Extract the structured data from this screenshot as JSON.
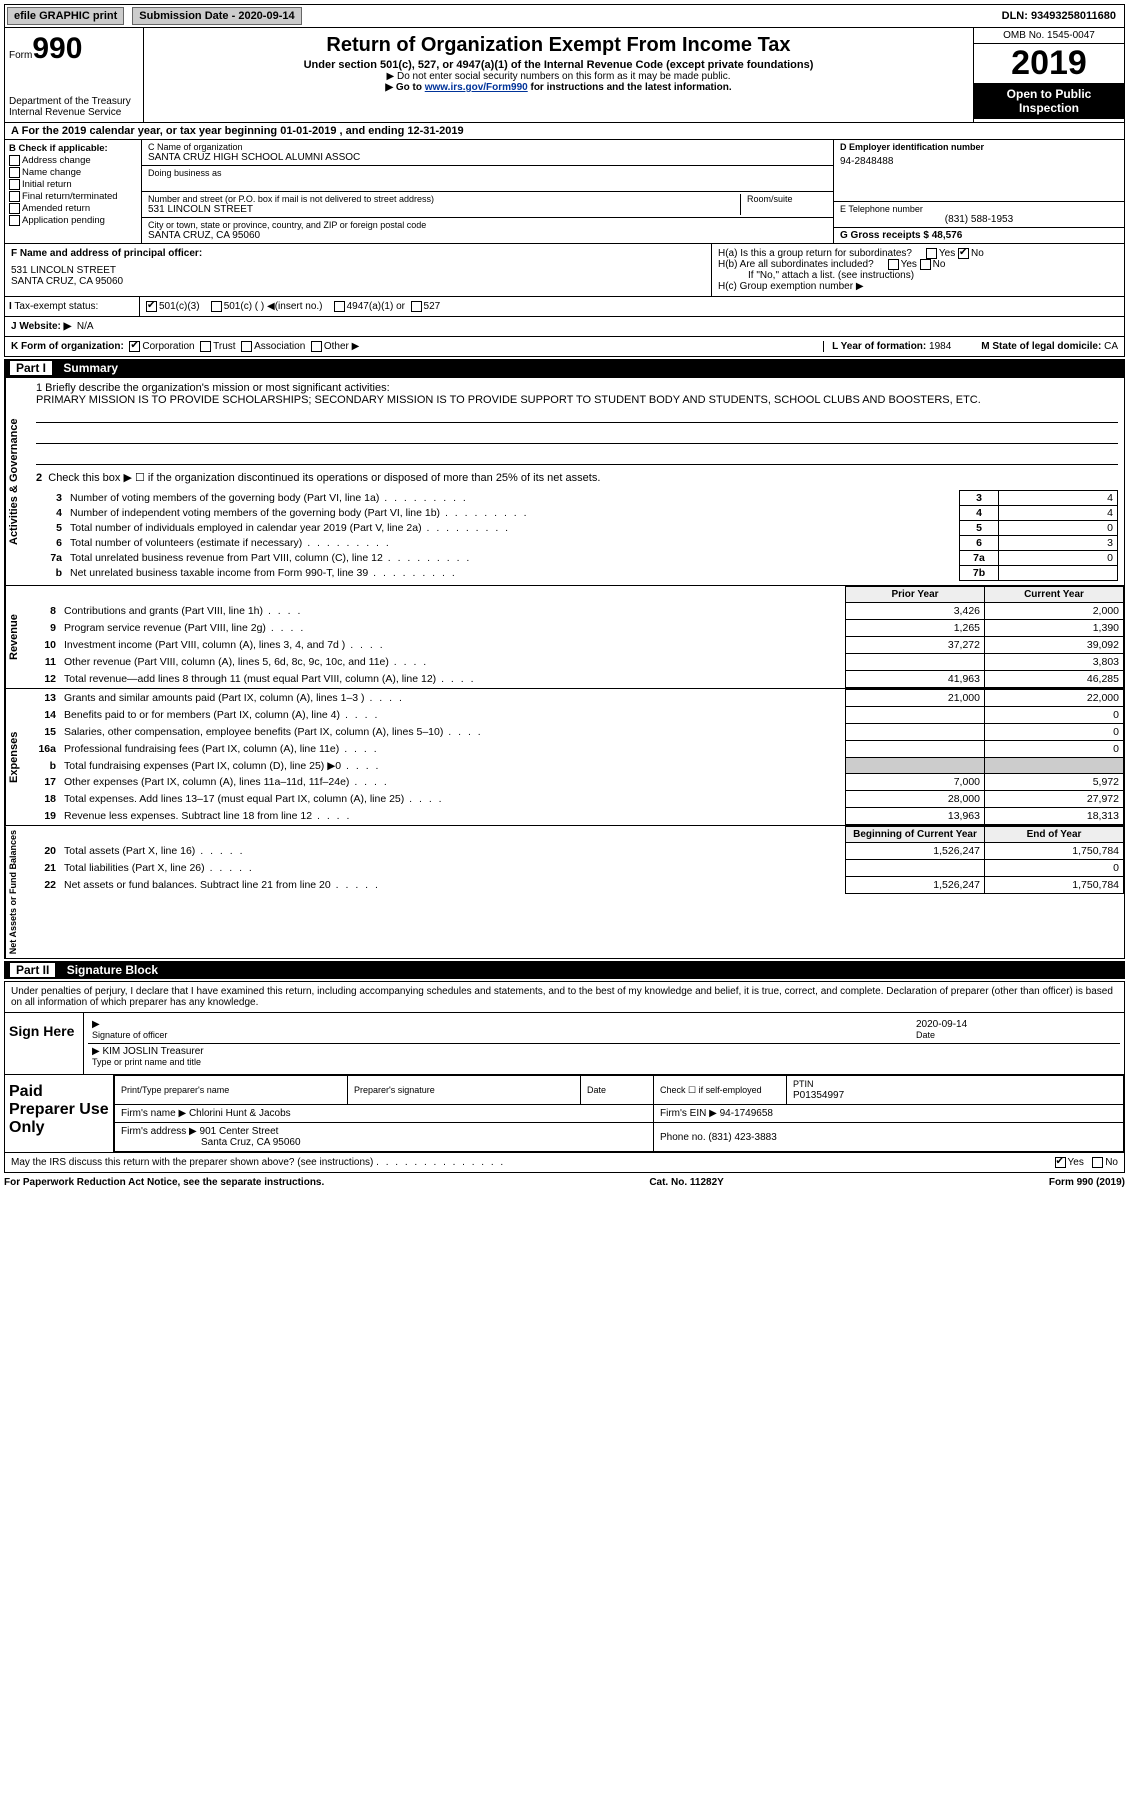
{
  "topbar": {
    "efile": "efile GRAPHIC print",
    "subdate_label": "Submission Date - ",
    "subdate": "2020-09-14",
    "dln": "DLN: 93493258011680"
  },
  "header": {
    "form_word": "Form",
    "form_num": "990",
    "dept": "Department of the Treasury\nInternal Revenue Service",
    "title": "Return of Organization Exempt From Income Tax",
    "subtitle": "Under section 501(c), 527, or 4947(a)(1) of the Internal Revenue Code (except private foundations)",
    "instr1": "▶ Do not enter social security numbers on this form as it may be made public.",
    "instr2_pre": "▶ Go to ",
    "instr2_link": "www.irs.gov/Form990",
    "instr2_post": " for instructions and the latest information.",
    "omb": "OMB No. 1545-0047",
    "year": "2019",
    "open": "Open to Public Inspection"
  },
  "period": "For the 2019 calendar year, or tax year beginning 01-01-2019   , and ending 12-31-2019",
  "checkif": {
    "label": "B Check if applicable:",
    "opts": [
      "Address change",
      "Name change",
      "Initial return",
      "Final return/terminated",
      "Amended return",
      "Application pending"
    ]
  },
  "orgname_label": "C Name of organization",
  "orgname": "SANTA CRUZ HIGH SCHOOL ALUMNI ASSOC",
  "dba_label": "Doing business as",
  "addr_label": "Number and street (or P.O. box if mail is not delivered to street address)",
  "room_label": "Room/suite",
  "addr": "531 LINCOLN STREET",
  "city_label": "City or town, state or province, country, and ZIP or foreign postal code",
  "city": "SANTA CRUZ, CA  95060",
  "ein_label": "D Employer identification number",
  "ein": "94-2848488",
  "tel_label": "E Telephone number",
  "tel": "(831) 588-1953",
  "gross_label": "G Gross receipts $ ",
  "gross": "48,576",
  "officer_label": "F  Name and address of principal officer:",
  "officer_addr": "531 LINCOLN STREET\nSANTA CRUZ, CA  95060",
  "ha": "H(a)  Is this a group return for subordinates?",
  "hb": "H(b)  Are all subordinates included?",
  "hb_note": "If \"No,\" attach a list. (see instructions)",
  "hc": "H(c)  Group exemption number ▶",
  "tax_status_label": "Tax-exempt status:",
  "website_label": "J  Website: ▶",
  "website": "N/A",
  "korg_label": "K Form of organization:",
  "lyear_label": "L Year of formation: ",
  "lyear": "1984",
  "mstate_label": "M State of legal domicile: ",
  "mstate": "CA",
  "part1": {
    "num": "Part I",
    "title": "Summary"
  },
  "mission_label": "1  Briefly describe the organization's mission or most significant activities:",
  "mission": "PRIMARY MISSION IS TO PROVIDE SCHOLARSHIPS; SECONDARY MISSION IS TO PROVIDE SUPPORT TO STUDENT BODY AND STUDENTS, SCHOOL CLUBS AND BOOSTERS, ETC.",
  "line2": "Check this box ▶ ☐  if the organization discontinued its operations or disposed of more than 25% of its net assets.",
  "gov_rows": [
    {
      "n": "3",
      "desc": "Number of voting members of the governing body (Part VI, line 1a)",
      "box": "3",
      "val": "4"
    },
    {
      "n": "4",
      "desc": "Number of independent voting members of the governing body (Part VI, line 1b)",
      "box": "4",
      "val": "4"
    },
    {
      "n": "5",
      "desc": "Total number of individuals employed in calendar year 2019 (Part V, line 2a)",
      "box": "5",
      "val": "0"
    },
    {
      "n": "6",
      "desc": "Total number of volunteers (estimate if necessary)",
      "box": "6",
      "val": "3"
    },
    {
      "n": "7a",
      "desc": "Total unrelated business revenue from Part VIII, column (C), line 12",
      "box": "7a",
      "val": "0"
    },
    {
      "n": "b",
      "desc": "Net unrelated business taxable income from Form 990-T, line 39",
      "box": "7b",
      "val": ""
    }
  ],
  "py_head": "Prior Year",
  "cy_head": "Current Year",
  "rev_rows": [
    {
      "n": "8",
      "desc": "Contributions and grants (Part VIII, line 1h)",
      "py": "3,426",
      "cy": "2,000"
    },
    {
      "n": "9",
      "desc": "Program service revenue (Part VIII, line 2g)",
      "py": "1,265",
      "cy": "1,390"
    },
    {
      "n": "10",
      "desc": "Investment income (Part VIII, column (A), lines 3, 4, and 7d )",
      "py": "37,272",
      "cy": "39,092"
    },
    {
      "n": "11",
      "desc": "Other revenue (Part VIII, column (A), lines 5, 6d, 8c, 9c, 10c, and 11e)",
      "py": "",
      "cy": "3,803"
    },
    {
      "n": "12",
      "desc": "Total revenue—add lines 8 through 11 (must equal Part VIII, column (A), line 12)",
      "py": "41,963",
      "cy": "46,285"
    }
  ],
  "exp_rows": [
    {
      "n": "13",
      "desc": "Grants and similar amounts paid (Part IX, column (A), lines 1–3 )",
      "py": "21,000",
      "cy": "22,000"
    },
    {
      "n": "14",
      "desc": "Benefits paid to or for members (Part IX, column (A), line 4)",
      "py": "",
      "cy": "0"
    },
    {
      "n": "15",
      "desc": "Salaries, other compensation, employee benefits (Part IX, column (A), lines 5–10)",
      "py": "",
      "cy": "0"
    },
    {
      "n": "16a",
      "desc": "Professional fundraising fees (Part IX, column (A), line 11e)",
      "py": "",
      "cy": "0"
    },
    {
      "n": "b",
      "desc": "Total fundraising expenses (Part IX, column (D), line 25) ▶0",
      "py": "GREY",
      "cy": "GREY"
    },
    {
      "n": "17",
      "desc": "Other expenses (Part IX, column (A), lines 11a–11d, 11f–24e)",
      "py": "7,000",
      "cy": "5,972"
    },
    {
      "n": "18",
      "desc": "Total expenses. Add lines 13–17 (must equal Part IX, column (A), line 25)",
      "py": "28,000",
      "cy": "27,972"
    },
    {
      "n": "19",
      "desc": "Revenue less expenses. Subtract line 18 from line 12",
      "py": "13,963",
      "cy": "18,313"
    }
  ],
  "na_head1": "Beginning of Current Year",
  "na_head2": "End of Year",
  "na_rows": [
    {
      "n": "20",
      "desc": "Total assets (Part X, line 16)",
      "py": "1,526,247",
      "cy": "1,750,784"
    },
    {
      "n": "21",
      "desc": "Total liabilities (Part X, line 26)",
      "py": "",
      "cy": "0"
    },
    {
      "n": "22",
      "desc": "Net assets or fund balances. Subtract line 21 from line 20",
      "py": "1,526,247",
      "cy": "1,750,784"
    }
  ],
  "part2": {
    "num": "Part II",
    "title": "Signature Block"
  },
  "sig_decl": "Under penalties of perjury, I declare that I have examined this return, including accompanying schedules and statements, and to the best of my knowledge and belief, it is true, correct, and complete. Declaration of preparer (other than officer) is based on all information of which preparer has any knowledge.",
  "sign_here": "Sign Here",
  "sig_officer_label": "Signature of officer",
  "sig_date_label": "Date",
  "sig_date": "2020-09-14",
  "sig_name": "KIM JOSLIN  Treasurer",
  "sig_name_label": "Type or print name and title",
  "paid_prep": "Paid Preparer Use Only",
  "prep": {
    "name_label": "Print/Type preparer's name",
    "sig_label": "Preparer's signature",
    "date_label": "Date",
    "check_label": "Check ☐ if self-employed",
    "ptin_label": "PTIN",
    "ptin": "P01354997",
    "firm_label": "Firm's name   ▶ ",
    "firm": "Chlorini Hunt & Jacobs",
    "ein_label": "Firm's EIN ▶ ",
    "ein": "94-1749658",
    "addr_label": "Firm's address ▶ ",
    "addr1": "901 Center Street",
    "addr2": "Santa Cruz, CA  95060",
    "phone_label": "Phone no. ",
    "phone": "(831) 423-3883"
  },
  "discuss": "May the IRS discuss this return with the preparer shown above? (see instructions)",
  "footer": {
    "left": "For Paperwork Reduction Act Notice, see the separate instructions.",
    "mid": "Cat. No. 11282Y",
    "right": "Form 990 (2019)"
  }
}
